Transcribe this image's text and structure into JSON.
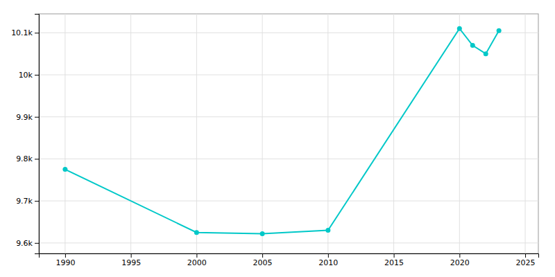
{
  "chart_data": {
    "type": "line",
    "x": [
      1990,
      2000,
      2005,
      2010,
      2020,
      2021,
      2022,
      2023
    ],
    "values": [
      9775,
      9625,
      9622,
      9630,
      10110,
      10070,
      10050,
      10105
    ],
    "color": "#00c8c8",
    "marker": "circle",
    "xlim": [
      1988,
      2026
    ],
    "ylim": [
      9575,
      10145
    ],
    "xticks": [
      1990,
      1995,
      2000,
      2005,
      2010,
      2015,
      2020,
      2025
    ],
    "yticks": [
      {
        "value": 9600,
        "label": "9.6k"
      },
      {
        "value": 9700,
        "label": "9.7k"
      },
      {
        "value": 9800,
        "label": "9.8k"
      },
      {
        "value": 9900,
        "label": "9.9k"
      },
      {
        "value": 10000,
        "label": "10k"
      },
      {
        "value": 10100,
        "label": "10.1k"
      }
    ],
    "grid": true
  }
}
